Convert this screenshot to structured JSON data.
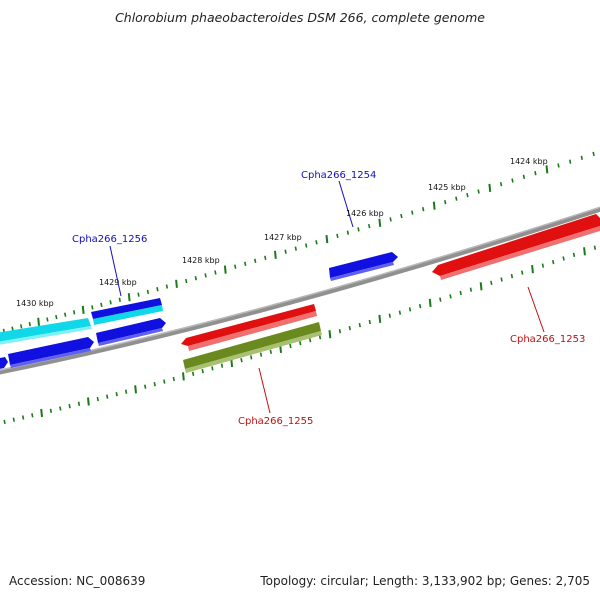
{
  "title": "Chlorobium phaeobacteroides DSM 266, complete genome",
  "footer": {
    "accession": "Accession: NC_008639",
    "summary": "Topology: circular; Length: 3,133,902 bp; Genes: 2,705"
  },
  "colors": {
    "forward_cds": "#1010e0",
    "reverse_cds": "#e01010",
    "cyan_feature": "#10d8e8",
    "olive_feature": "#6a8a20",
    "backbone": "#808080",
    "tick": "#1a7a1a",
    "forward_label": "#1010c0",
    "reverse_label": "#c01010"
  },
  "scale": {
    "labels": [
      "1430 kbp",
      "1429 kbp",
      "1428 kbp",
      "1427 kbp",
      "1426 kbp",
      "1425 kbp",
      "1424 kbp"
    ]
  },
  "genes": {
    "g1256": "Cpha266_1256",
    "g1254": "Cpha266_1254",
    "g1255": "Cpha266_1255",
    "g1253": "Cpha266_1253"
  }
}
